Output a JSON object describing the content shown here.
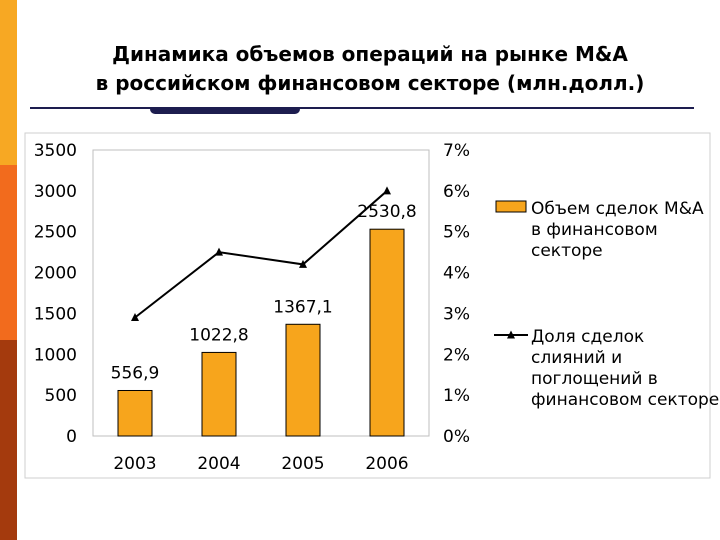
{
  "slide": {
    "title_line1": "Динамика объемов операций на рынке M&A",
    "title_line2": "в российском финансовом секторе (млн.долл.)",
    "colors": {
      "stripe_top": "#f7a823",
      "stripe_mid": "#f26b1d",
      "stripe_bottom": "#a43a0d",
      "rule": "#1d1d4f"
    }
  },
  "chart_data": {
    "type": "bar",
    "categories": [
      "2003",
      "2004",
      "2005",
      "2006"
    ],
    "series": [
      {
        "name": "Объем сделок M&A в финансовом секторе",
        "kind": "bar",
        "axis": "left",
        "color": "#f7a51c",
        "values": [
          556.9,
          1022.8,
          1367.1,
          2530.8
        ],
        "labels": [
          "556,9",
          "1022,8",
          "1367,1",
          "2530,8"
        ]
      },
      {
        "name": "Доля сделок слияний и поглощений в финансовом секторе",
        "kind": "line",
        "axis": "right",
        "color": "#000000",
        "marker": "triangle",
        "values": [
          2.9,
          4.5,
          4.2,
          6.0
        ]
      }
    ],
    "y_left": {
      "min": 0,
      "max": 3500,
      "ticks": [
        "0",
        "500",
        "1000",
        "1500",
        "2000",
        "2500",
        "3000",
        "3500"
      ]
    },
    "y_right": {
      "min": 0,
      "max": 7,
      "ticks": [
        "0%",
        "1%",
        "2%",
        "3%",
        "4%",
        "5%",
        "6%",
        "7%"
      ]
    },
    "legend": {
      "position": "right",
      "entries": [
        {
          "lines": [
            "Объем сделок M&A",
            "в финансовом",
            "секторе"
          ]
        },
        {
          "lines": [
            "Доля сделок",
            "слияний и",
            "поглощений в",
            "финансовом секторе"
          ]
        }
      ]
    },
    "grid": false
  }
}
